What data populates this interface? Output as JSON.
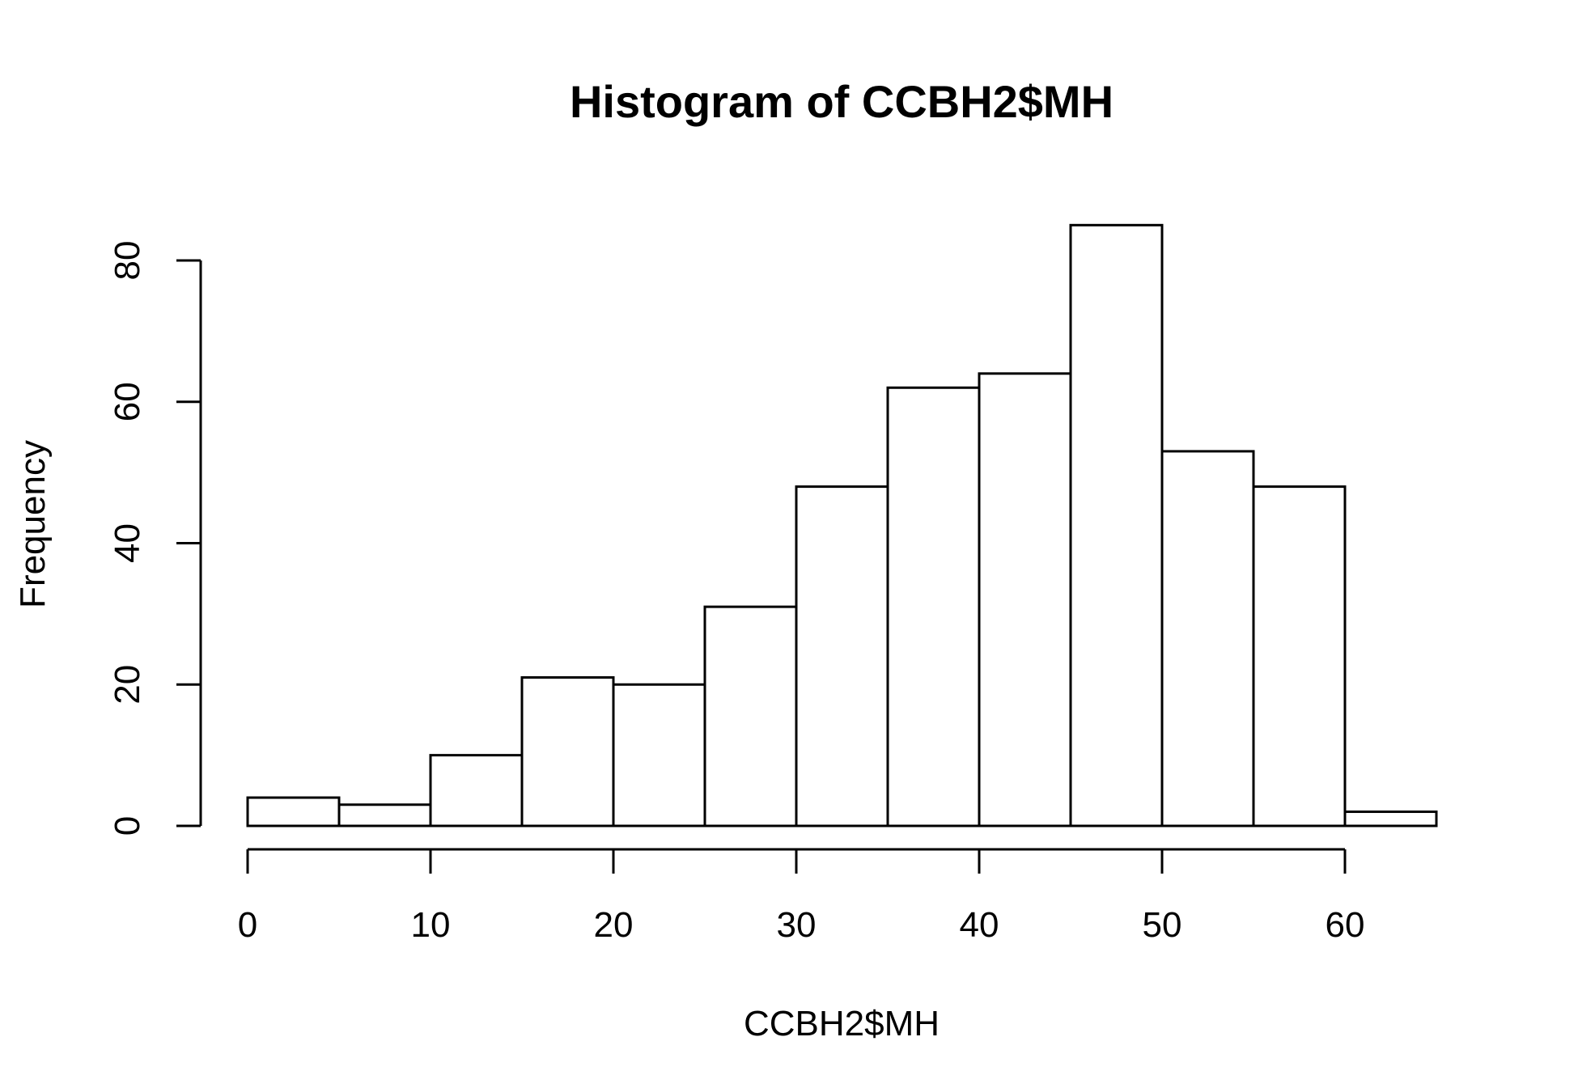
{
  "chart_data": {
    "type": "bar",
    "title": "Histogram of CCBH2$MH",
    "xlabel": "CCBH2$MH",
    "ylabel": "Frequency",
    "bins": [
      {
        "start": 0,
        "end": 5,
        "count": 4
      },
      {
        "start": 5,
        "end": 10,
        "count": 3
      },
      {
        "start": 10,
        "end": 15,
        "count": 10
      },
      {
        "start": 15,
        "end": 20,
        "count": 21
      },
      {
        "start": 20,
        "end": 25,
        "count": 20
      },
      {
        "start": 25,
        "end": 30,
        "count": 31
      },
      {
        "start": 30,
        "end": 35,
        "count": 48
      },
      {
        "start": 35,
        "end": 40,
        "count": 62
      },
      {
        "start": 40,
        "end": 45,
        "count": 64
      },
      {
        "start": 45,
        "end": 50,
        "count": 85
      },
      {
        "start": 50,
        "end": 55,
        "count": 53
      },
      {
        "start": 55,
        "end": 60,
        "count": 48
      },
      {
        "start": 60,
        "end": 65,
        "count": 2
      }
    ],
    "x_ticks": [
      "0",
      "10",
      "20",
      "30",
      "40",
      "50",
      "60"
    ],
    "y_ticks": [
      "0",
      "20",
      "40",
      "60",
      "80"
    ],
    "xlim": [
      0,
      65
    ],
    "ylim": [
      0,
      85
    ],
    "grid": false,
    "legend": "none",
    "colors": {
      "bar_fill": "#ffffff",
      "bar_stroke": "#000000",
      "background": "#ffffff"
    }
  }
}
